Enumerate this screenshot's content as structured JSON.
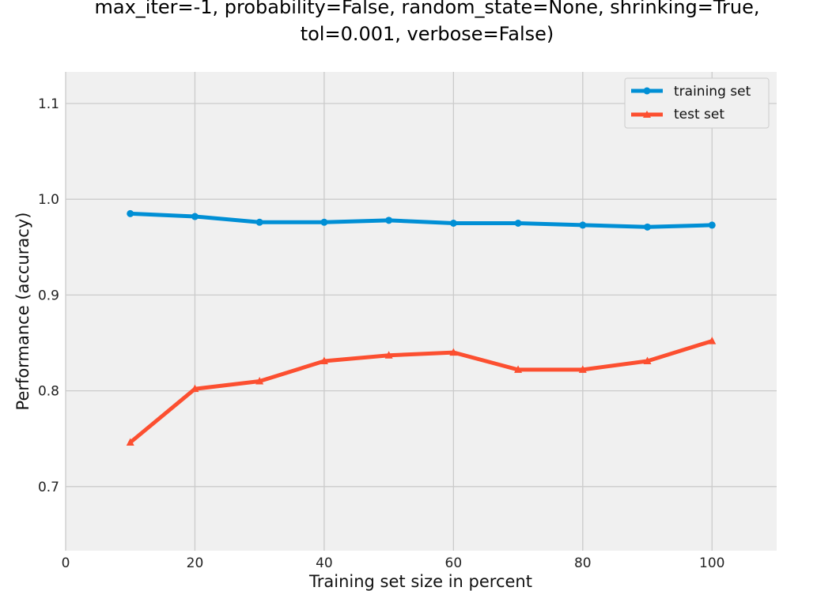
{
  "chart_data": {
    "type": "line",
    "title_lines": [
      "max_iter=-1, probability=False, random_state=None, shrinking=True,",
      "tol=0.001, verbose=False)"
    ],
    "xlabel": "Training set size in percent",
    "ylabel": "Performance (accuracy)",
    "xlim": [
      0,
      110
    ],
    "ylim": [
      0.633,
      1.133
    ],
    "xticks": [
      0,
      20,
      40,
      60,
      80,
      100
    ],
    "yticks": [
      0.7,
      0.8,
      0.9,
      1.0,
      1.1
    ],
    "xtick_labels": [
      "0",
      "20",
      "40",
      "60",
      "80",
      "100"
    ],
    "ytick_labels": [
      "0.7",
      "0.8",
      "0.9",
      "1.0",
      "1.1"
    ],
    "grid": true,
    "legend_position": "top-right",
    "x": [
      10,
      20,
      30,
      40,
      50,
      60,
      70,
      80,
      90,
      100
    ],
    "series": [
      {
        "name": "training set",
        "marker": "circle",
        "color": "#008fd5",
        "values": [
          0.985,
          0.982,
          0.976,
          0.976,
          0.978,
          0.975,
          0.975,
          0.973,
          0.971,
          0.973
        ]
      },
      {
        "name": "test set",
        "marker": "triangle",
        "color": "#fc4f30",
        "values": [
          0.746,
          0.802,
          0.81,
          0.831,
          0.837,
          0.84,
          0.822,
          0.822,
          0.831,
          0.852
        ]
      }
    ]
  }
}
